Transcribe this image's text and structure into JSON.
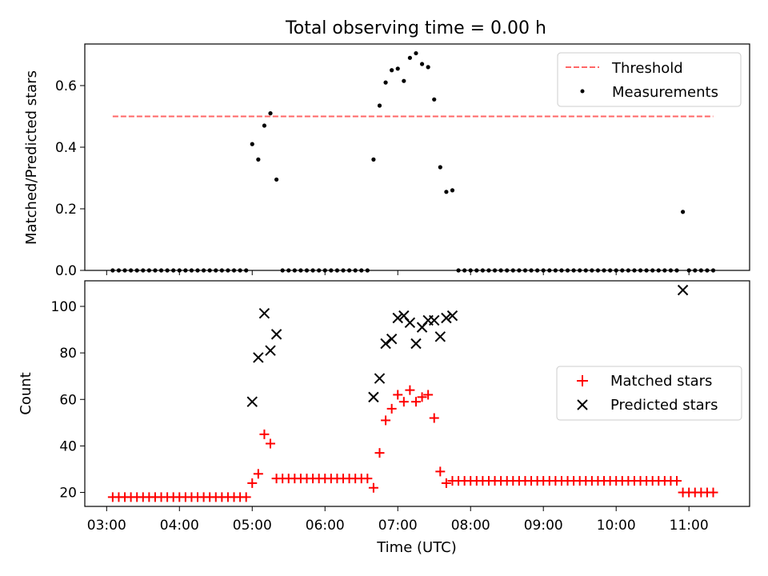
{
  "figure_title": "Total observing time = 0.00 h",
  "chart_data": [
    {
      "type": "scatter",
      "title": "Total observing time = 0.00 h",
      "xlabel": "",
      "ylabel": "Matched/Predicted stars",
      "ylim": [
        0,
        0.735
      ],
      "yticks": [
        0.0,
        0.2,
        0.4,
        0.6
      ],
      "ytick_labels": [
        "0.0",
        "0.2",
        "0.4",
        "0.6"
      ],
      "legend_position": "top-right",
      "threshold": {
        "name": "Threshold",
        "value": 0.5,
        "x_start": "03:05",
        "x_end": "11:20",
        "color": "#ff6666",
        "style": "dashed"
      },
      "series": [
        {
          "name": "Measurements",
          "color": "#000000",
          "marker": "dot",
          "points": [
            [
              "03:05",
              0
            ],
            [
              "03:10",
              0
            ],
            [
              "03:15",
              0
            ],
            [
              "03:20",
              0
            ],
            [
              "03:25",
              0
            ],
            [
              "03:30",
              0
            ],
            [
              "03:35",
              0
            ],
            [
              "03:40",
              0
            ],
            [
              "03:45",
              0
            ],
            [
              "03:50",
              0
            ],
            [
              "03:55",
              0
            ],
            [
              "04:00",
              0
            ],
            [
              "04:05",
              0
            ],
            [
              "04:10",
              0
            ],
            [
              "04:15",
              0
            ],
            [
              "04:20",
              0
            ],
            [
              "04:25",
              0
            ],
            [
              "04:30",
              0
            ],
            [
              "04:35",
              0
            ],
            [
              "04:40",
              0
            ],
            [
              "04:45",
              0
            ],
            [
              "04:50",
              0
            ],
            [
              "04:55",
              0
            ],
            [
              "05:00",
              0.41
            ],
            [
              "05:05",
              0.36
            ],
            [
              "05:10",
              0.47
            ],
            [
              "05:15",
              0.51
            ],
            [
              "05:20",
              0.295
            ],
            [
              "05:25",
              0
            ],
            [
              "05:30",
              0
            ],
            [
              "05:35",
              0
            ],
            [
              "05:40",
              0
            ],
            [
              "05:45",
              0
            ],
            [
              "05:50",
              0
            ],
            [
              "05:55",
              0
            ],
            [
              "06:00",
              0
            ],
            [
              "06:05",
              0
            ],
            [
              "06:10",
              0
            ],
            [
              "06:15",
              0
            ],
            [
              "06:20",
              0
            ],
            [
              "06:25",
              0
            ],
            [
              "06:30",
              0
            ],
            [
              "06:35",
              0
            ],
            [
              "06:40",
              0.36
            ],
            [
              "06:45",
              0.535
            ],
            [
              "06:50",
              0.61
            ],
            [
              "06:55",
              0.65
            ],
            [
              "07:00",
              0.655
            ],
            [
              "07:05",
              0.615
            ],
            [
              "07:10",
              0.69
            ],
            [
              "07:15",
              0.705
            ],
            [
              "07:20",
              0.67
            ],
            [
              "07:25",
              0.66
            ],
            [
              "07:30",
              0.555
            ],
            [
              "07:35",
              0.335
            ],
            [
              "07:40",
              0.255
            ],
            [
              "07:45",
              0.26
            ],
            [
              "07:50",
              0
            ],
            [
              "07:55",
              0
            ],
            [
              "08:00",
              0
            ],
            [
              "08:05",
              0
            ],
            [
              "08:10",
              0
            ],
            [
              "08:15",
              0
            ],
            [
              "08:20",
              0
            ],
            [
              "08:25",
              0
            ],
            [
              "08:30",
              0
            ],
            [
              "08:35",
              0
            ],
            [
              "08:40",
              0
            ],
            [
              "08:45",
              0
            ],
            [
              "08:50",
              0
            ],
            [
              "08:55",
              0
            ],
            [
              "09:00",
              0
            ],
            [
              "09:05",
              0
            ],
            [
              "09:10",
              0
            ],
            [
              "09:15",
              0
            ],
            [
              "09:20",
              0
            ],
            [
              "09:25",
              0
            ],
            [
              "09:30",
              0
            ],
            [
              "09:35",
              0
            ],
            [
              "09:40",
              0
            ],
            [
              "09:45",
              0
            ],
            [
              "09:50",
              0
            ],
            [
              "09:55",
              0
            ],
            [
              "10:00",
              0
            ],
            [
              "10:05",
              0
            ],
            [
              "10:10",
              0
            ],
            [
              "10:15",
              0
            ],
            [
              "10:20",
              0
            ],
            [
              "10:25",
              0
            ],
            [
              "10:30",
              0
            ],
            [
              "10:35",
              0
            ],
            [
              "10:40",
              0
            ],
            [
              "10:45",
              0
            ],
            [
              "10:50",
              0
            ],
            [
              "10:55",
              0.19
            ],
            [
              "11:00",
              0
            ],
            [
              "11:05",
              0
            ],
            [
              "11:10",
              0
            ],
            [
              "11:15",
              0
            ],
            [
              "11:20",
              0
            ]
          ]
        }
      ]
    },
    {
      "type": "scatter",
      "xlabel": "Time (UTC)",
      "ylabel": "Count",
      "ylim": [
        14,
        111
      ],
      "yticks": [
        20,
        40,
        60,
        80,
        100
      ],
      "ytick_labels": [
        "20",
        "40",
        "60",
        "80",
        "100"
      ],
      "xlim": [
        "02:42",
        "11:50"
      ],
      "xticks": [
        "03:00",
        "04:00",
        "05:00",
        "06:00",
        "07:00",
        "08:00",
        "09:00",
        "10:00",
        "11:00"
      ],
      "legend_position": "center-right",
      "series": [
        {
          "name": "Matched stars",
          "color": "#ff0000",
          "marker": "plus",
          "points": [
            [
              "03:05",
              18
            ],
            [
              "03:10",
              18
            ],
            [
              "03:15",
              18
            ],
            [
              "03:20",
              18
            ],
            [
              "03:25",
              18
            ],
            [
              "03:30",
              18
            ],
            [
              "03:35",
              18
            ],
            [
              "03:40",
              18
            ],
            [
              "03:45",
              18
            ],
            [
              "03:50",
              18
            ],
            [
              "03:55",
              18
            ],
            [
              "04:00",
              18
            ],
            [
              "04:05",
              18
            ],
            [
              "04:10",
              18
            ],
            [
              "04:15",
              18
            ],
            [
              "04:20",
              18
            ],
            [
              "04:25",
              18
            ],
            [
              "04:30",
              18
            ],
            [
              "04:35",
              18
            ],
            [
              "04:40",
              18
            ],
            [
              "04:45",
              18
            ],
            [
              "04:50",
              18
            ],
            [
              "04:55",
              18
            ],
            [
              "05:00",
              24
            ],
            [
              "05:05",
              28
            ],
            [
              "05:10",
              45
            ],
            [
              "05:15",
              41
            ],
            [
              "05:20",
              26
            ],
            [
              "05:25",
              26
            ],
            [
              "05:30",
              26
            ],
            [
              "05:35",
              26
            ],
            [
              "05:40",
              26
            ],
            [
              "05:45",
              26
            ],
            [
              "05:50",
              26
            ],
            [
              "05:55",
              26
            ],
            [
              "06:00",
              26
            ],
            [
              "06:05",
              26
            ],
            [
              "06:10",
              26
            ],
            [
              "06:15",
              26
            ],
            [
              "06:20",
              26
            ],
            [
              "06:25",
              26
            ],
            [
              "06:30",
              26
            ],
            [
              "06:35",
              26
            ],
            [
              "06:40",
              22
            ],
            [
              "06:45",
              37
            ],
            [
              "06:50",
              51
            ],
            [
              "06:55",
              56
            ],
            [
              "07:00",
              62
            ],
            [
              "07:05",
              59
            ],
            [
              "07:10",
              64
            ],
            [
              "07:15",
              59
            ],
            [
              "07:20",
              61
            ],
            [
              "07:25",
              62
            ],
            [
              "07:30",
              52
            ],
            [
              "07:35",
              29
            ],
            [
              "07:40",
              24
            ],
            [
              "07:45",
              25
            ],
            [
              "07:50",
              25
            ],
            [
              "07:55",
              25
            ],
            [
              "08:00",
              25
            ],
            [
              "08:05",
              25
            ],
            [
              "08:10",
              25
            ],
            [
              "08:15",
              25
            ],
            [
              "08:20",
              25
            ],
            [
              "08:25",
              25
            ],
            [
              "08:30",
              25
            ],
            [
              "08:35",
              25
            ],
            [
              "08:40",
              25
            ],
            [
              "08:45",
              25
            ],
            [
              "08:50",
              25
            ],
            [
              "08:55",
              25
            ],
            [
              "09:00",
              25
            ],
            [
              "09:05",
              25
            ],
            [
              "09:10",
              25
            ],
            [
              "09:15",
              25
            ],
            [
              "09:20",
              25
            ],
            [
              "09:25",
              25
            ],
            [
              "09:30",
              25
            ],
            [
              "09:35",
              25
            ],
            [
              "09:40",
              25
            ],
            [
              "09:45",
              25
            ],
            [
              "09:50",
              25
            ],
            [
              "09:55",
              25
            ],
            [
              "10:00",
              25
            ],
            [
              "10:05",
              25
            ],
            [
              "10:10",
              25
            ],
            [
              "10:15",
              25
            ],
            [
              "10:20",
              25
            ],
            [
              "10:25",
              25
            ],
            [
              "10:30",
              25
            ],
            [
              "10:35",
              25
            ],
            [
              "10:40",
              25
            ],
            [
              "10:45",
              25
            ],
            [
              "10:50",
              25
            ],
            [
              "10:55",
              20
            ],
            [
              "11:00",
              20
            ],
            [
              "11:05",
              20
            ],
            [
              "11:10",
              20
            ],
            [
              "11:15",
              20
            ],
            [
              "11:20",
              20
            ]
          ]
        },
        {
          "name": "Predicted stars",
          "color": "#000000",
          "marker": "x",
          "points": [
            [
              "05:00",
              59
            ],
            [
              "05:05",
              78
            ],
            [
              "05:10",
              97
            ],
            [
              "05:15",
              81
            ],
            [
              "05:20",
              88
            ],
            [
              "06:40",
              61
            ],
            [
              "06:45",
              69
            ],
            [
              "06:50",
              84
            ],
            [
              "06:55",
              86
            ],
            [
              "07:00",
              95
            ],
            [
              "07:05",
              96
            ],
            [
              "07:10",
              93
            ],
            [
              "07:15",
              84
            ],
            [
              "07:20",
              91
            ],
            [
              "07:25",
              94
            ],
            [
              "07:30",
              94
            ],
            [
              "07:35",
              87
            ],
            [
              "07:40",
              95
            ],
            [
              "07:45",
              96
            ],
            [
              "10:55",
              107
            ]
          ]
        }
      ]
    }
  ]
}
